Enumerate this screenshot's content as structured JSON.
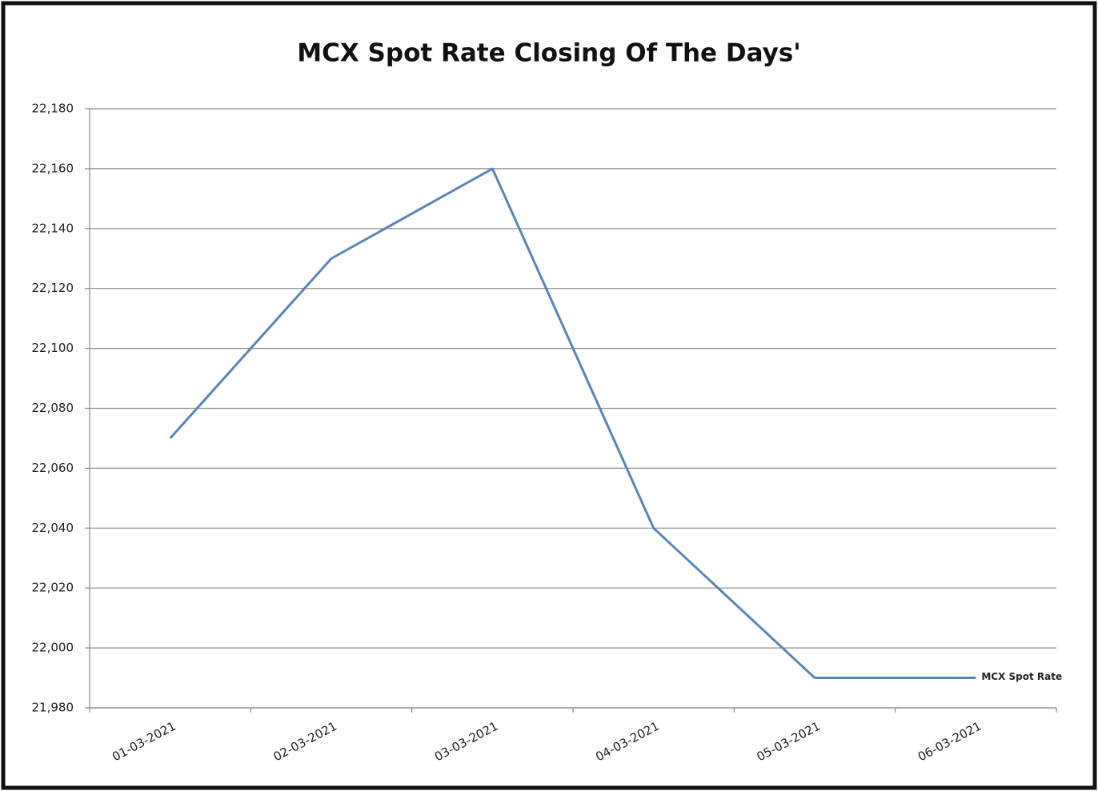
{
  "chart_data": {
    "type": "line",
    "title": "MCX Spot Rate Closing Of The Days'",
    "categories": [
      "01-03-2021",
      "02-03-2021",
      "03-03-2021",
      "04-03-2021",
      "05-03-2021",
      "06-03-2021"
    ],
    "series": [
      {
        "name": "MCX Spot Rate",
        "color": "#5a84b8",
        "values": [
          22070,
          22130,
          22160,
          22040,
          21990,
          21990
        ]
      }
    ],
    "ylim": [
      21980,
      22180
    ],
    "yticks": [
      {
        "value": 21980,
        "label": "21,980"
      },
      {
        "value": 22000,
        "label": "22,000"
      },
      {
        "value": 22020,
        "label": "22,020"
      },
      {
        "value": 22040,
        "label": "22,040"
      },
      {
        "value": 22060,
        "label": "22,060"
      },
      {
        "value": 22080,
        "label": "22,080"
      },
      {
        "value": 22100,
        "label": "22,100"
      },
      {
        "value": 22120,
        "label": "22,120"
      },
      {
        "value": 22140,
        "label": "22,140"
      },
      {
        "value": 22160,
        "label": "22,160"
      },
      {
        "value": 22180,
        "label": "22,180"
      }
    ],
    "grid": true
  }
}
